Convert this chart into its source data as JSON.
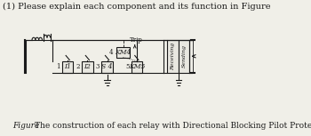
{
  "title_text": "(1) Please explain each component and its function in Figure",
  "caption_label": "Figure",
  "caption_text": "The construction of each relay with Directional Blocking Pilot Protection",
  "bg_color": "#f0efe8",
  "line_color": "#1a1a1a",
  "box_fill": "#e8e7e0",
  "title_fontsize": 7.0,
  "caption_fontsize": 6.5,
  "labels": {
    "I1": "I1",
    "I2": "I2",
    "S4": "S 4",
    "KM4": "KM4",
    "KM5": "KM5",
    "trip": "Trip",
    "sending": "Sending",
    "receiving": "Receiving",
    "n1": "1",
    "n2": "2",
    "n3": "3",
    "n4": "4",
    "n5": "5"
  }
}
